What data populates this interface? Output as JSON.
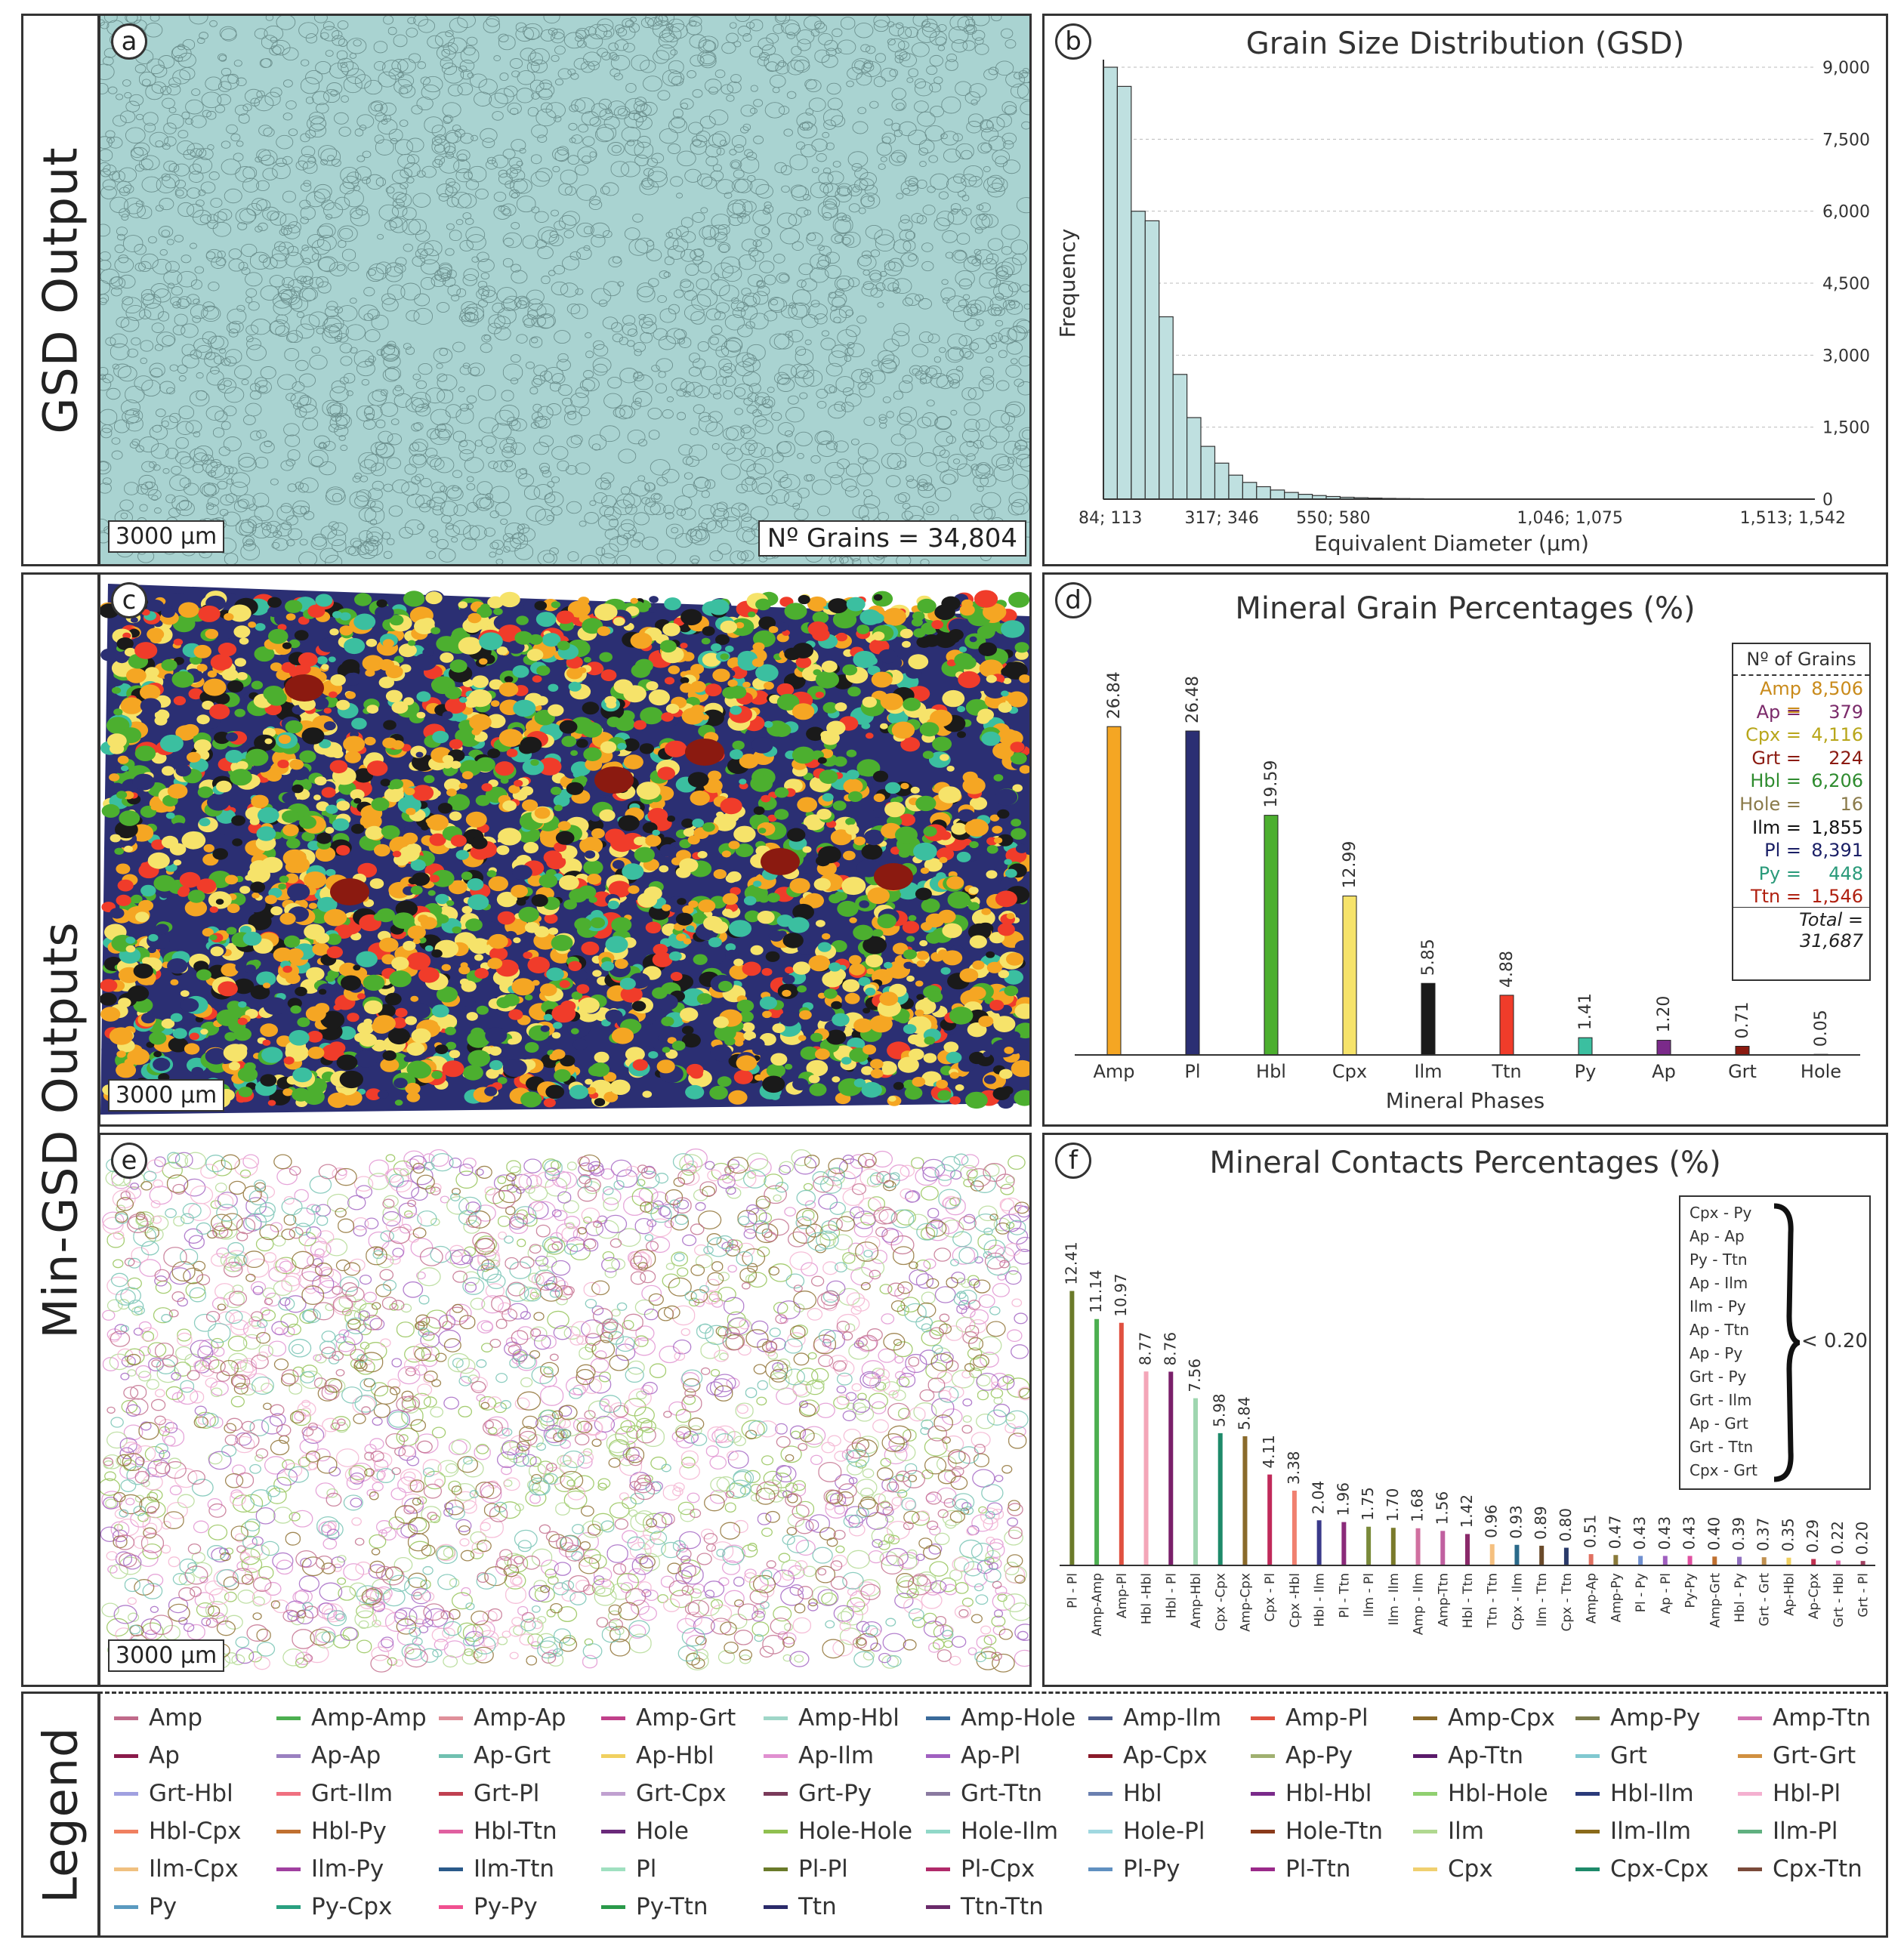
{
  "rows": {
    "gsd_output": "GSD Output",
    "min_gsd_outputs": "Min-GSD Outputs",
    "legend": "Legend"
  },
  "panels": {
    "a": {
      "label": "a",
      "scale": "3000 µm",
      "grains": "Nº Grains = 34,804"
    },
    "b": {
      "label": "b"
    },
    "c": {
      "label": "c",
      "scale": "3000 µm"
    },
    "d": {
      "label": "d"
    },
    "e": {
      "label": "e",
      "scale": "3000 µm"
    },
    "f": {
      "label": "f"
    }
  },
  "colors": {
    "map_a_fill": "#a9d3d1",
    "map_a_line": "#3c5b5a",
    "hist_fill": "#bfe0e0",
    "Amp": "#f5a623",
    "Pl": "#2b2f73",
    "Hbl": "#4caf2f",
    "Cpx": "#f6e36a",
    "Ilm": "#1a1a1a",
    "Ttn": "#f03c2a",
    "Py": "#3bbfa0",
    "Ap": "#7b2a8a",
    "Grt": "#8b1a10",
    "Hole": "#888888"
  },
  "grains_table": {
    "header": "Nº of Grains",
    "rows": [
      {
        "name": "Amp =",
        "value": "8,506",
        "color": "#c98a1a"
      },
      {
        "name": "Ap =",
        "value": "379",
        "color": "#7b2a6a"
      },
      {
        "name": "Cpx =",
        "value": "4,116",
        "color": "#b8a61a"
      },
      {
        "name": "Grt =",
        "value": "224",
        "color": "#8b1a10"
      },
      {
        "name": "Hbl =",
        "value": "6,206",
        "color": "#2e8b2e"
      },
      {
        "name": "Hole =",
        "value": "16",
        "color": "#8a7a4a"
      },
      {
        "name": "Ilm =",
        "value": "1,855",
        "color": "#111111"
      },
      {
        "name": "Pl =",
        "value": "8,391",
        "color": "#1a1f66"
      },
      {
        "name": "Py =",
        "value": "448",
        "color": "#2a9a7a"
      },
      {
        "name": "Ttn =",
        "value": "1,546",
        "color": "#b02010"
      }
    ],
    "total": "Total = 31,687"
  },
  "contacts_note": {
    "items": [
      "Cpx - Py",
      "Ap - Ap",
      "Py - Ttn",
      "Ap - Ilm",
      "Ilm - Py",
      "Ap - Ttn",
      "Ap - Py",
      "Grt - Py",
      "Grt - Ilm",
      "Ap - Grt",
      "Grt - Ttn",
      "Cpx - Grt"
    ],
    "threshold": "< 0.20"
  },
  "chart_data": [
    {
      "type": "bar",
      "title": "Grain Size Distribution (GSD)",
      "xlabel": "Equivalent Diameter (µm)",
      "ylabel": "Frequency",
      "x_tick_labels": [
        "84; 113",
        "317; 346",
        "550; 580",
        "1,046; 1,075",
        "1,513; 1,542"
      ],
      "x_tick_bins": [
        0,
        8,
        16,
        33,
        49
      ],
      "bin_count": 50,
      "y_ticks": [
        "0",
        "1,500",
        "3,000",
        "4,500",
        "6,000",
        "7,500",
        "9,000"
      ],
      "y_tick_values": [
        0,
        1500,
        3000,
        4500,
        6000,
        7500,
        9000
      ],
      "ylim": [
        0,
        9000
      ],
      "values": [
        9000,
        8600,
        6000,
        5800,
        3800,
        2600,
        1700,
        1100,
        750,
        500,
        350,
        260,
        190,
        140,
        100,
        75,
        55,
        40,
        30,
        22,
        16,
        12,
        9,
        7,
        5,
        4,
        3,
        2,
        2,
        1,
        1,
        1,
        1,
        0,
        0,
        0,
        0,
        0,
        0,
        0,
        0,
        0,
        0,
        0,
        0,
        0,
        0,
        0,
        0,
        0
      ],
      "grid": true
    },
    {
      "type": "bar",
      "title": "Mineral Grain Percentages (%)",
      "xlabel": "Mineral Phases",
      "categories": [
        "Amp",
        "Pl",
        "Hbl",
        "Cpx",
        "Ilm",
        "Ttn",
        "Py",
        "Ap",
        "Grt",
        "Hole"
      ],
      "values": [
        26.84,
        26.48,
        19.59,
        12.99,
        5.85,
        4.88,
        1.41,
        1.2,
        0.71,
        0.05
      ],
      "labels": [
        "26.84",
        "26.48",
        "19.59",
        "12.99",
        "5.85",
        "4.88",
        "1.41",
        "1.20",
        "0.71",
        "0.05"
      ],
      "colors": [
        "#f5a623",
        "#2b2f73",
        "#4caf2f",
        "#f6e36a",
        "#1a1a1a",
        "#f03c2a",
        "#3bbfa0",
        "#7b2a8a",
        "#8b1a10",
        "#888888"
      ],
      "ylim": [
        0,
        30
      ]
    },
    {
      "type": "bar",
      "title": "Mineral Contacts Percentages (%)",
      "categories": [
        "Pl - Pl",
        "Amp-Amp",
        "Amp-Pl",
        "Hbl -Hbl",
        "Hbl - Pl",
        "Amp-Hbl",
        "Cpx -Cpx",
        "Amp-Cpx",
        "Cpx - Pl",
        "Cpx -Hbl",
        "Hbl - Ilm",
        "Pl - Ttn",
        "Ilm - Pl",
        "Ilm - Ilm",
        "Amp - Ilm",
        "Amp-Ttn",
        "Hbl - Ttn",
        "Ttn - Ttn",
        "Cpx - Ilm",
        "Ilm - Ttn",
        "Cpx - Ttn",
        "Amp-Ap",
        "Amp-Py",
        "Pl - Py",
        "Ap - Pl",
        "Py-Py",
        "Amp-Grt",
        "Hbl - Py",
        "Grt - Grt",
        "Ap-Hbl",
        "Ap-Cpx",
        "Grt - Hbl",
        "Grt - Pl"
      ],
      "values": [
        12.41,
        11.14,
        10.97,
        8.77,
        8.76,
        7.56,
        5.98,
        5.84,
        4.11,
        3.38,
        2.04,
        1.96,
        1.75,
        1.7,
        1.68,
        1.56,
        1.42,
        0.96,
        0.93,
        0.89,
        0.8,
        0.51,
        0.47,
        0.43,
        0.43,
        0.43,
        0.4,
        0.39,
        0.37,
        0.35,
        0.29,
        0.22,
        0.2
      ],
      "labels": [
        "12.41",
        "11.14",
        "10.97",
        "8.77",
        "8.76",
        "7.56",
        "5.98",
        "5.84",
        "4.11",
        "3.38",
        "2.04",
        "1.96",
        "1.75",
        "1.70",
        "1.68",
        "1.56",
        "1.42",
        "0.96",
        "0.93",
        "0.89",
        "0.80",
        "0.51",
        "0.47",
        "0.43",
        "0.43",
        "0.43",
        "0.40",
        "0.39",
        "0.37",
        "0.35",
        "0.29",
        "0.22",
        "0.20"
      ],
      "colors": [
        "#6b7a2a",
        "#4caf50",
        "#e05040",
        "#f4a6b8",
        "#7a1f6a",
        "#9fd6b0",
        "#1e8a6a",
        "#8a6a2a",
        "#c02a5a",
        "#f08070",
        "#3a3a8a",
        "#8a2a7a",
        "#7a8a3a",
        "#7a7a2a",
        "#d070a0",
        "#c060a0",
        "#8a2a6a",
        "#f5c080",
        "#2a6a8a",
        "#6a4a2a",
        "#2a3a6a",
        "#e07060",
        "#8a7a3a",
        "#7090d0",
        "#a060c0",
        "#e050a0",
        "#c07030",
        "#9070c0",
        "#c09050",
        "#f0d060",
        "#c03050",
        "#e070b0",
        "#a04060"
      ],
      "ylim": [
        0,
        14
      ]
    }
  ],
  "legend": [
    {
      "label": "Amp",
      "color": "#c06a8a"
    },
    {
      "label": "Amp-Amp",
      "color": "#4caf50"
    },
    {
      "label": "Amp-Ap",
      "color": "#e0909a"
    },
    {
      "label": "Amp-Grt",
      "color": "#c0408a"
    },
    {
      "label": "Amp-Hbl",
      "color": "#9fd6c8"
    },
    {
      "label": "Amp-Hole",
      "color": "#3a6a9a"
    },
    {
      "label": "Amp-Ilm",
      "color": "#4a5a8a"
    },
    {
      "label": "Amp-Pl",
      "color": "#e05040"
    },
    {
      "label": "Amp-Cpx",
      "color": "#8a6a2a"
    },
    {
      "label": "Amp-Py",
      "color": "#7a7a4a"
    },
    {
      "label": "Amp-Ttn",
      "color": "#d070b0"
    },
    {
      "label": "Ap",
      "color": "#8a1a4a"
    },
    {
      "label": "Ap-Ap",
      "color": "#9a80c0"
    },
    {
      "label": "Ap-Grt",
      "color": "#70c0b0"
    },
    {
      "label": "Ap-Hbl",
      "color": "#f0d060"
    },
    {
      "label": "Ap-Ilm",
      "color": "#e090d0"
    },
    {
      "label": "Ap-Pl",
      "color": "#a060c0"
    },
    {
      "label": "Ap-Cpx",
      "color": "#8a1a2a"
    },
    {
      "label": "Ap-Py",
      "color": "#a0b070"
    },
    {
      "label": "Ap-Ttn",
      "color": "#5a1a6a"
    },
    {
      "label": "Grt",
      "color": "#80c8d0"
    },
    {
      "label": "Grt-Grt",
      "color": "#d09040"
    },
    {
      "label": "Grt-Hbl",
      "color": "#a0a0e0"
    },
    {
      "label": "Grt-Ilm",
      "color": "#f07080"
    },
    {
      "label": "Grt-Pl",
      "color": "#c04050"
    },
    {
      "label": "Grt-Cpx",
      "color": "#c0a0d0"
    },
    {
      "label": "Grt-Py",
      "color": "#7a3a5a"
    },
    {
      "label": "Grt-Ttn",
      "color": "#8a7aa0"
    },
    {
      "label": "Hbl",
      "color": "#6a80b0"
    },
    {
      "label": "Hbl-Hbl",
      "color": "#7a2a8a"
    },
    {
      "label": "Hbl-Hole",
      "color": "#90d070"
    },
    {
      "label": "Hbl-Ilm",
      "color": "#2a3a7a"
    },
    {
      "label": "Hbl-Pl",
      "color": "#f4b0d0"
    },
    {
      "label": "Hbl-Cpx",
      "color": "#f08060"
    },
    {
      "label": "Hbl-Py",
      "color": "#c07030"
    },
    {
      "label": "Hbl-Ttn",
      "color": "#e060a0"
    },
    {
      "label": "Hole",
      "color": "#6a2a7a"
    },
    {
      "label": "Hole-Hole",
      "color": "#90c050"
    },
    {
      "label": "Hole-Ilm",
      "color": "#90d8c8"
    },
    {
      "label": "Hole-Pl",
      "color": "#a0d8e0"
    },
    {
      "label": "Hole-Ttn",
      "color": "#8a3a1a"
    },
    {
      "label": "Ilm",
      "color": "#b0d890"
    },
    {
      "label": "Ilm-Ilm",
      "color": "#8a6a1a"
    },
    {
      "label": "Ilm-Pl",
      "color": "#60b080"
    },
    {
      "label": "Ilm-Cpx",
      "color": "#f0c080"
    },
    {
      "label": "Ilm-Py",
      "color": "#a040a0"
    },
    {
      "label": "Ilm-Ttn",
      "color": "#2a5a8a"
    },
    {
      "label": "Pl",
      "color": "#a0e0c0"
    },
    {
      "label": "Pl-Pl",
      "color": "#6a7a2a"
    },
    {
      "label": "Pl-Cpx",
      "color": "#b02a6a"
    },
    {
      "label": "Pl-Py",
      "color": "#6090c0"
    },
    {
      "label": "Pl-Ttn",
      "color": "#9a2a8a"
    },
    {
      "label": "Cpx",
      "color": "#f0d070"
    },
    {
      "label": "Cpx-Cpx",
      "color": "#1e8a6a"
    },
    {
      "label": "Cpx-Ttn",
      "color": "#7a4a3a"
    },
    {
      "label": "Py",
      "color": "#5a9ac0"
    },
    {
      "label": "Py-Cpx",
      "color": "#2aa080"
    },
    {
      "label": "Py-Py",
      "color": "#f05090"
    },
    {
      "label": "Py-Ttn",
      "color": "#2a9a4a"
    },
    {
      "label": "Ttn",
      "color": "#2a2a6a"
    },
    {
      "label": "Ttn-Ttn",
      "color": "#6a2a6a"
    }
  ]
}
